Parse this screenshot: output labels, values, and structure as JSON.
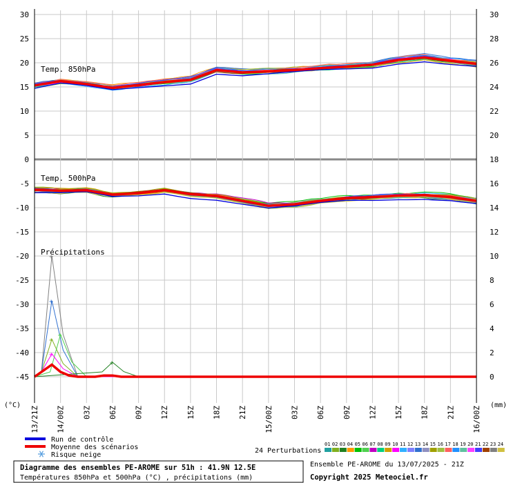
{
  "chart_data": {
    "type": "line",
    "title": "Diagramme des ensembles PE-AROME sur 51h : 41.9N 12.5E",
    "subtitle": "Températures 850hPa et 500hPa (°C) , précipitations (mm)",
    "run_label": "Ensemble PE-AROME du 13/07/2025 - 21Z",
    "copyright": "Copyright 2025 Meteociel.fr",
    "left_axis_label": "(°C)",
    "right_axis_label": "(mm)",
    "left_axis_range": [
      -45,
      30
    ],
    "left_ticks": [
      "30",
      "25",
      "20",
      "15",
      "10",
      "5",
      "0",
      "-5",
      "-10",
      "-15",
      "-20",
      "-25",
      "-30",
      "-35",
      "-40",
      "-45"
    ],
    "right_ticks_temp": [
      "30",
      "28",
      "26",
      "24",
      "22",
      "20",
      "18",
      "16",
      "14",
      "12"
    ],
    "right_ticks_precip": [
      "10",
      "8",
      "6",
      "4",
      "2",
      "0"
    ],
    "x_ticks": [
      "13/21Z",
      "14/00Z",
      "03Z",
      "06Z",
      "09Z",
      "12Z",
      "15Z",
      "18Z",
      "21Z",
      "15/00Z",
      "03Z",
      "06Z",
      "09Z",
      "12Z",
      "15Z",
      "18Z",
      "21Z",
      "16/00Z"
    ],
    "x_hours": [
      0,
      3,
      6,
      9,
      12,
      15,
      18,
      21,
      24,
      27,
      30,
      33,
      36,
      39,
      42,
      45,
      48,
      51
    ],
    "panel_labels": {
      "t850": "Temp. 850hPa",
      "t500": "Temp. 500hPa",
      "precip": "Précipitations"
    },
    "legend": {
      "control": "Run de contrôle",
      "mean": "Moyenne des scénarios",
      "snow": "Risque neige",
      "perturbations": "24 Perturbations"
    },
    "members": [
      "01",
      "02",
      "03",
      "04",
      "05",
      "06",
      "07",
      "08",
      "09",
      "10",
      "11",
      "12",
      "13",
      "14",
      "15",
      "16",
      "17",
      "18",
      "19",
      "20",
      "21",
      "22",
      "23",
      "24"
    ],
    "member_colors": [
      "#20a0a0",
      "#80b020",
      "#208020",
      "#ff9900",
      "#00c000",
      "#50d050",
      "#c000c0",
      "#00d080",
      "#d0a000",
      "#ff00ff",
      "#30b0ff",
      "#8080ff",
      "#3070d0",
      "#9090c0",
      "#a0a000",
      "#a0c040",
      "#ff6060",
      "#2090ff",
      "#60c0a0",
      "#ff40ff",
      "#4040ff",
      "#a04000",
      "#808080",
      "#d0c040"
    ],
    "series": [
      {
        "name": "Temp. 850hPa",
        "hours": [
          0,
          3,
          6,
          9,
          12,
          15,
          18,
          21,
          24,
          27,
          30,
          33,
          36,
          39,
          42,
          45,
          48,
          51
        ],
        "mean": [
          15.3,
          16.2,
          15.6,
          14.8,
          15.4,
          16.0,
          16.5,
          18.5,
          18.0,
          18.2,
          18.5,
          18.9,
          19.2,
          19.6,
          20.6,
          21.1,
          20.4,
          19.8
        ],
        "spread": [
          0.9,
          0.7,
          0.6,
          0.7,
          0.6,
          0.5,
          0.6,
          0.7,
          0.6,
          0.6,
          0.6,
          0.6,
          0.7,
          0.8,
          0.9,
          1.0,
          0.9,
          1.0
        ]
      },
      {
        "name": "Temp. 500hPa",
        "hours": [
          0,
          3,
          6,
          9,
          12,
          15,
          18,
          21,
          24,
          27,
          30,
          33,
          36,
          39,
          42,
          45,
          48,
          51
        ],
        "mean": [
          -6.3,
          -6.5,
          -6.4,
          -7.3,
          -7.0,
          -6.4,
          -7.2,
          -7.6,
          -8.6,
          -9.6,
          -9.3,
          -8.6,
          -8.0,
          -7.8,
          -7.5,
          -7.4,
          -7.8,
          -8.6
        ],
        "spread": [
          0.8,
          0.6,
          0.6,
          0.6,
          0.5,
          0.5,
          0.5,
          0.6,
          0.6,
          0.7,
          0.7,
          0.6,
          0.6,
          0.6,
          0.6,
          0.7,
          0.9,
          1.1
        ]
      },
      {
        "name": "Précipitations",
        "hours": [
          0,
          1,
          2,
          3,
          4,
          5,
          6,
          7,
          8,
          9,
          10,
          11,
          12,
          51
        ],
        "mean": [
          0.0,
          0.5,
          1.0,
          0.4,
          0.1,
          0.0,
          0.0,
          0.0,
          0.1,
          0.1,
          0.0,
          0.0,
          0.0,
          0.0
        ],
        "peaks": [
          {
            "member": "23",
            "hour": 2,
            "value": 10.0
          },
          {
            "member": "13",
            "hour": 2,
            "value": 6.3
          },
          {
            "member": "02",
            "hour": 2,
            "value": 3.1
          },
          {
            "member": "06",
            "hour": 3,
            "value": 3.5
          },
          {
            "member": "10",
            "hour": 2,
            "value": 1.9
          },
          {
            "member": "03",
            "hour": 9,
            "value": 1.2
          }
        ]
      }
    ]
  }
}
